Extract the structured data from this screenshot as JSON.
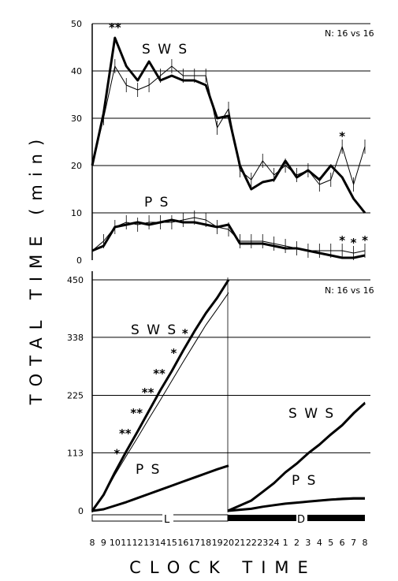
{
  "ylabel": "TOTAL TIME (min)",
  "xlabel": "CLOCK TIME",
  "x_ticks": [
    "8",
    "9",
    "10",
    "11",
    "12",
    "13",
    "14",
    "15",
    "16",
    "17",
    "18",
    "19",
    "20",
    "21",
    "22",
    "23",
    "24",
    "1",
    "2",
    "3",
    "4",
    "5",
    "6",
    "7",
    "8"
  ],
  "light_dark_bar": {
    "light_label": "L",
    "dark_label": "D"
  },
  "chart_data": [
    {
      "type": "line",
      "panel": "hourly",
      "annotation_n": "N: 16 vs 16",
      "ylim": [
        0,
        50
      ],
      "yticks": [
        "50",
        "40",
        "30",
        "20",
        "10",
        "0"
      ],
      "grid": true,
      "x": [
        8,
        9,
        10,
        11,
        12,
        13,
        14,
        15,
        16,
        17,
        18,
        19,
        20,
        21,
        22,
        23,
        24,
        1,
        2,
        3,
        4,
        5,
        6,
        7,
        8
      ],
      "labels": {
        "sws": "S W S",
        "ps": "P S"
      },
      "series": [
        {
          "group": "SWS",
          "style": "thick",
          "values": [
            20,
            31,
            47,
            41,
            38,
            42,
            38,
            39,
            38,
            38,
            37,
            30,
            30.5,
            20,
            15,
            16.5,
            17,
            21,
            17.5,
            19,
            17,
            20,
            17.5,
            13,
            10
          ]
        },
        {
          "group": "SWS",
          "style": "thin",
          "values": [
            20,
            30,
            41,
            37,
            36,
            37,
            39,
            41,
            39,
            39,
            39,
            28,
            32,
            19,
            17,
            21,
            18,
            20,
            18,
            19,
            16,
            17,
            24,
            16,
            24
          ]
        },
        {
          "group": "PS",
          "style": "thick",
          "values": [
            2,
            3,
            7,
            7.5,
            8,
            7.5,
            8,
            8.5,
            8,
            8,
            7.5,
            7,
            7.5,
            3.5,
            3.5,
            3.5,
            3,
            2.5,
            2.5,
            2,
            1.5,
            1,
            0.5,
            0.5,
            1
          ]
        },
        {
          "group": "PS",
          "style": "thin",
          "values": [
            2,
            4,
            7,
            8,
            7.5,
            8,
            8,
            8,
            8.5,
            9,
            8.5,
            7,
            6.5,
            4,
            4,
            4,
            3.5,
            3,
            2.5,
            2,
            2,
            2,
            2,
            1.5,
            2
          ]
        }
      ],
      "significance": [
        {
          "x": 10,
          "group": "SWS",
          "mark": "**"
        },
        {
          "x": 6,
          "group": "SWS",
          "mark": "*"
        },
        {
          "x": 6,
          "group": "PS",
          "mark": "*"
        },
        {
          "x": 7,
          "group": "PS",
          "mark": "*"
        },
        {
          "x": 8,
          "group": "PS",
          "mark": "*"
        }
      ]
    },
    {
      "type": "line",
      "panel": "cumulative",
      "annotation_n": "N: 16 vs 16",
      "ylim": [
        0,
        450
      ],
      "yticks": [
        "450",
        "338",
        "225",
        "113",
        "0"
      ],
      "grid": true,
      "labels": {
        "sws": "S W S",
        "ps": "P S"
      },
      "light_period": {
        "x": [
          8,
          9,
          10,
          11,
          12,
          13,
          14,
          15,
          16,
          17,
          18,
          19,
          20
        ],
        "series": [
          {
            "group": "SWS",
            "style": "thick",
            "values": [
              0,
              31,
              75,
              116,
              155,
              195,
              235,
              272,
              312,
              350,
              385,
              415,
              450
            ]
          },
          {
            "group": "SWS",
            "style": "thin",
            "values": [
              0,
              30,
              70,
              107,
              143,
              180,
              216,
              253,
              290,
              326,
              362,
              393,
              425
            ]
          },
          {
            "group": "PS",
            "style": "thick",
            "values": [
              0,
              3,
              10,
              17,
              25,
              33,
              41,
              49,
              57,
              65,
              73,
              81,
              88
            ]
          },
          {
            "group": "PS",
            "style": "thin",
            "values": [
              0,
              3,
              10,
              18,
              25,
              33,
              41,
              49,
              57,
              66,
              74,
              81,
              87
            ]
          }
        ],
        "significance": [
          {
            "x": 11,
            "mark": "*"
          },
          {
            "x": 12,
            "mark": "**"
          },
          {
            "x": 13,
            "mark": "**"
          },
          {
            "x": 14,
            "mark": "**"
          },
          {
            "x": 15,
            "mark": "**"
          },
          {
            "x": 16,
            "mark": "*"
          },
          {
            "x": 17,
            "mark": "*"
          }
        ]
      },
      "dark_period": {
        "x": [
          21,
          22,
          23,
          24,
          1,
          2,
          3,
          4,
          5,
          6,
          7,
          8
        ],
        "series": [
          {
            "group": "SWS",
            "style": "thick",
            "values": [
              0,
              20,
              37,
              54,
              75,
              92,
              112,
              129,
              149,
              167,
              190,
              210
            ]
          },
          {
            "group": "SWS",
            "style": "thin",
            "values": [
              0,
              20,
              38,
              55,
              75,
              93,
              111,
              130,
              147,
              165,
              188,
              212
            ]
          },
          {
            "group": "PS",
            "style": "thick",
            "values": [
              0,
              4,
              8,
              11,
              14,
              16,
              18,
              20,
              22,
              23,
              24,
              24
            ]
          },
          {
            "group": "PS",
            "style": "thin",
            "values": [
              0,
              4,
              8,
              12,
              14,
              17,
              19,
              21,
              23,
              25,
              26,
              26
            ]
          }
        ]
      }
    }
  ]
}
